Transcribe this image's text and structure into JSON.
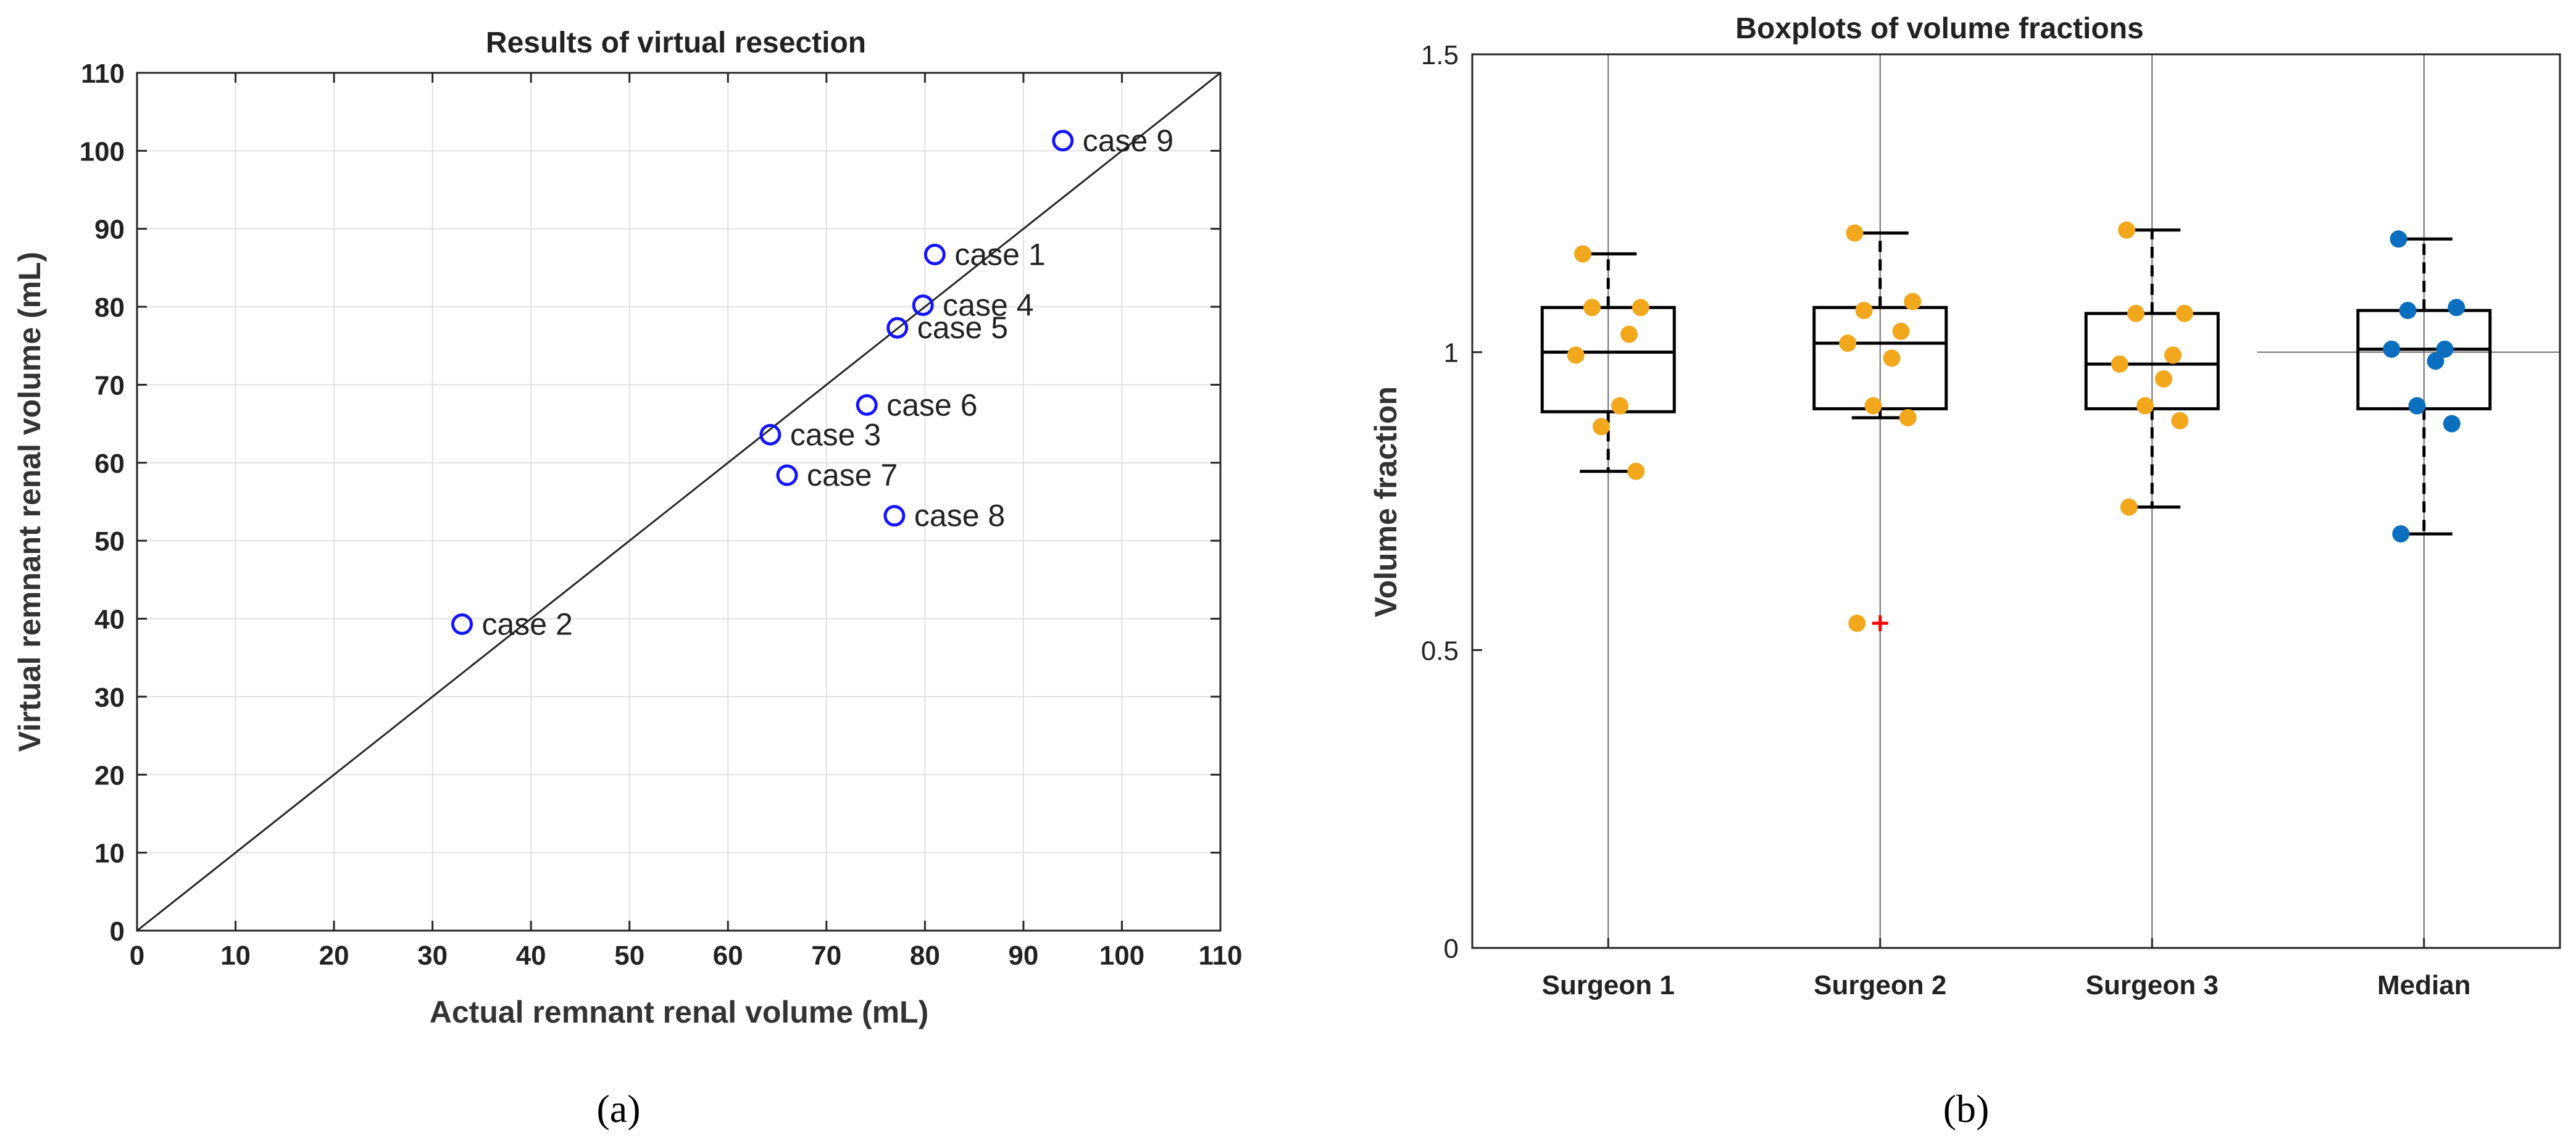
{
  "colors": {
    "circle": "#1414ff",
    "orange": "#f2a81d",
    "blue": "#0a6fbe",
    "outlier": "#ff0000",
    "grid": "#e1e1e1",
    "axis": "#262626"
  },
  "chart_data": [
    {
      "type": "scatter",
      "title": "Results of virtual resection",
      "xlabel": "Actual remnant renal volume (mL)",
      "ylabel": "Virtual remnant renal volume (mL)",
      "xlim": [
        0,
        110
      ],
      "ylim": [
        0,
        110
      ],
      "xticks": [
        0,
        10,
        20,
        30,
        40,
        50,
        60,
        70,
        80,
        90,
        100,
        110
      ],
      "yticks": [
        0,
        10,
        20,
        30,
        40,
        50,
        60,
        70,
        80,
        90,
        100,
        110
      ],
      "grid": true,
      "reference_line": "y = x",
      "points": [
        {
          "label": "case 1",
          "x": 81,
          "y": 86.7
        },
        {
          "label": "case 2",
          "x": 33,
          "y": 39.3
        },
        {
          "label": "case 3",
          "x": 64.3,
          "y": 63.6
        },
        {
          "label": "case 4",
          "x": 79.8,
          "y": 80.2
        },
        {
          "label": "case 5",
          "x": 77.2,
          "y": 77.3
        },
        {
          "label": "case 6",
          "x": 74.1,
          "y": 67.4
        },
        {
          "label": "case 7",
          "x": 66,
          "y": 58.4
        },
        {
          "label": "case 8",
          "x": 76.9,
          "y": 53.2
        },
        {
          "label": "case 9",
          "x": 94,
          "y": 101.3
        }
      ],
      "panel_label": "(a)"
    },
    {
      "type": "boxplot",
      "title": "Boxplots of volume fractions",
      "xlabel": "",
      "ylabel": "Volume fraction",
      "ylim": [
        0,
        1.5
      ],
      "yticks": [
        "0",
        "0.5",
        "1",
        "1.5"
      ],
      "reference_line_y": 1,
      "categories": [
        "Surgeon 1",
        "Surgeon 2",
        "Surgeon 3",
        "Median"
      ],
      "boxes": [
        {
          "name": "Surgeon 1",
          "q1": 0.9,
          "median": 1.0,
          "q3": 1.075,
          "whisker_low": 0.8,
          "whisker_high": 1.165,
          "outliers": [],
          "points": [
            1.165,
            1.075,
            1.075,
            1.03,
            0.995,
            0.91,
            0.875,
            0.8
          ],
          "color": "orange"
        },
        {
          "name": "Surgeon 2",
          "q1": 0.905,
          "median": 1.015,
          "q3": 1.075,
          "whisker_low": 0.89,
          "whisker_high": 1.2,
          "outliers": [
            0.545
          ],
          "points": [
            1.2,
            1.085,
            1.07,
            1.035,
            1.015,
            0.99,
            0.91,
            0.89,
            0.545
          ],
          "color": "orange"
        },
        {
          "name": "Surgeon 3",
          "q1": 0.905,
          "median": 0.98,
          "q3": 1.065,
          "whisker_low": 0.74,
          "whisker_high": 1.205,
          "outliers": [],
          "points": [
            1.205,
            1.065,
            1.065,
            0.995,
            0.98,
            0.955,
            0.91,
            0.885,
            0.74
          ],
          "color": "orange"
        },
        {
          "name": "Median",
          "q1": 0.905,
          "median": 1.005,
          "q3": 1.07,
          "whisker_low": 0.695,
          "whisker_high": 1.19,
          "outliers": [],
          "points": [
            1.19,
            1.075,
            1.07,
            1.005,
            1.005,
            0.985,
            0.91,
            0.88,
            0.695
          ],
          "color": "blue"
        }
      ],
      "panel_label": "(b)"
    }
  ]
}
